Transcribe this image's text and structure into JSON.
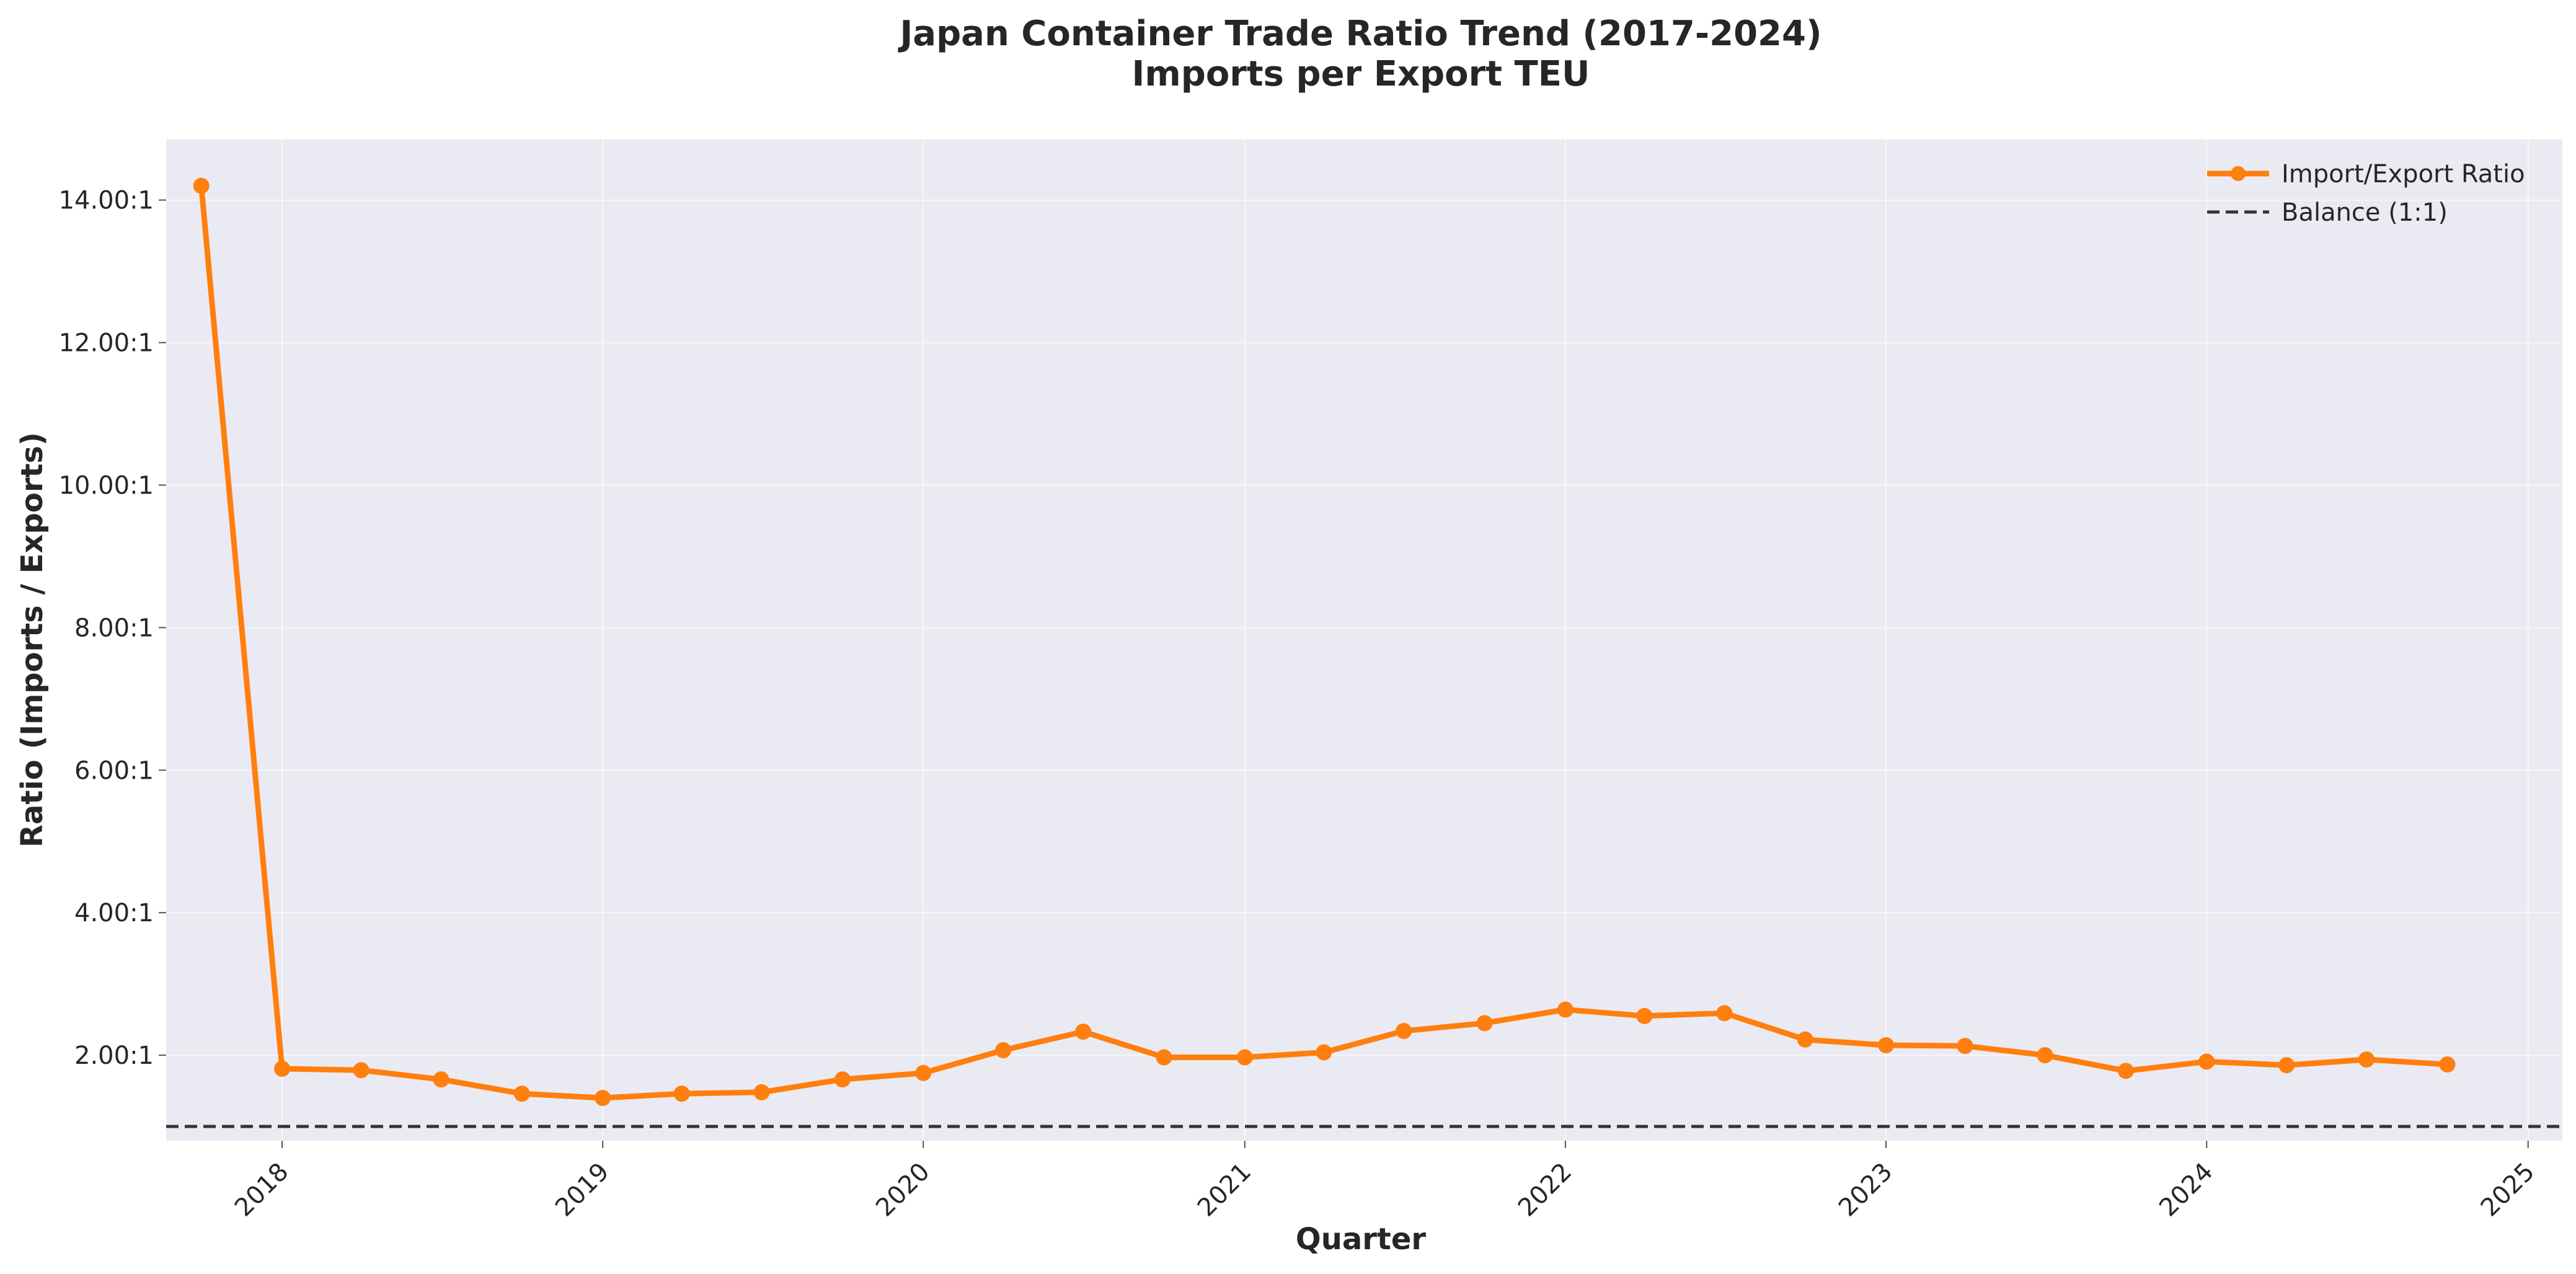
{
  "chart_data": {
    "type": "line",
    "title": "Japan Container Trade Ratio Trend (2017-2024)",
    "subtitle": "Imports per Export TEU",
    "xlabel": "Quarter",
    "ylabel": "Ratio (Imports / Exports)",
    "xlim": [
      "2017-08-22",
      "2025-02-09"
    ],
    "ylim": [
      0.8,
      14.85
    ],
    "x_ticks": [
      "2018",
      "2019",
      "2020",
      "2021",
      "2022",
      "2023",
      "2024",
      "2025"
    ],
    "y_ticks": [
      "2.00:1",
      "4.00:1",
      "6.00:1",
      "8.00:1",
      "10.00:1",
      "12.00:1",
      "14.00:1"
    ],
    "x": [
      "2017-10-01",
      "2018-01-01",
      "2018-04-01",
      "2018-07-01",
      "2018-10-01",
      "2019-01-01",
      "2019-04-01",
      "2019-07-01",
      "2019-10-01",
      "2020-01-01",
      "2020-04-01",
      "2020-07-01",
      "2020-10-01",
      "2021-01-01",
      "2021-04-01",
      "2021-07-01",
      "2021-10-01",
      "2022-01-01",
      "2022-04-01",
      "2022-07-01",
      "2022-10-01",
      "2023-01-01",
      "2023-04-01",
      "2023-07-01",
      "2023-10-01",
      "2024-01-01",
      "2024-04-01",
      "2024-07-01",
      "2024-10-01"
    ],
    "series": [
      {
        "name": "Import/Export Ratio",
        "color": "#ff7f0e",
        "marker": "circle",
        "values": [
          14.2,
          1.81,
          1.79,
          1.66,
          1.46,
          1.4,
          1.46,
          1.48,
          1.66,
          1.75,
          2.07,
          2.33,
          1.97,
          1.97,
          2.04,
          2.34,
          2.45,
          2.64,
          2.55,
          2.59,
          2.22,
          2.14,
          2.13,
          2.0,
          1.78,
          1.91,
          1.86,
          1.94,
          1.87
        ]
      }
    ],
    "reference_lines": [
      {
        "name": "Balance (1:1)",
        "y": 1.0,
        "style": "dashed",
        "color": "#333333"
      }
    ],
    "grid": true,
    "legend_position": "top-right",
    "background_color": "#eaeaf2"
  }
}
